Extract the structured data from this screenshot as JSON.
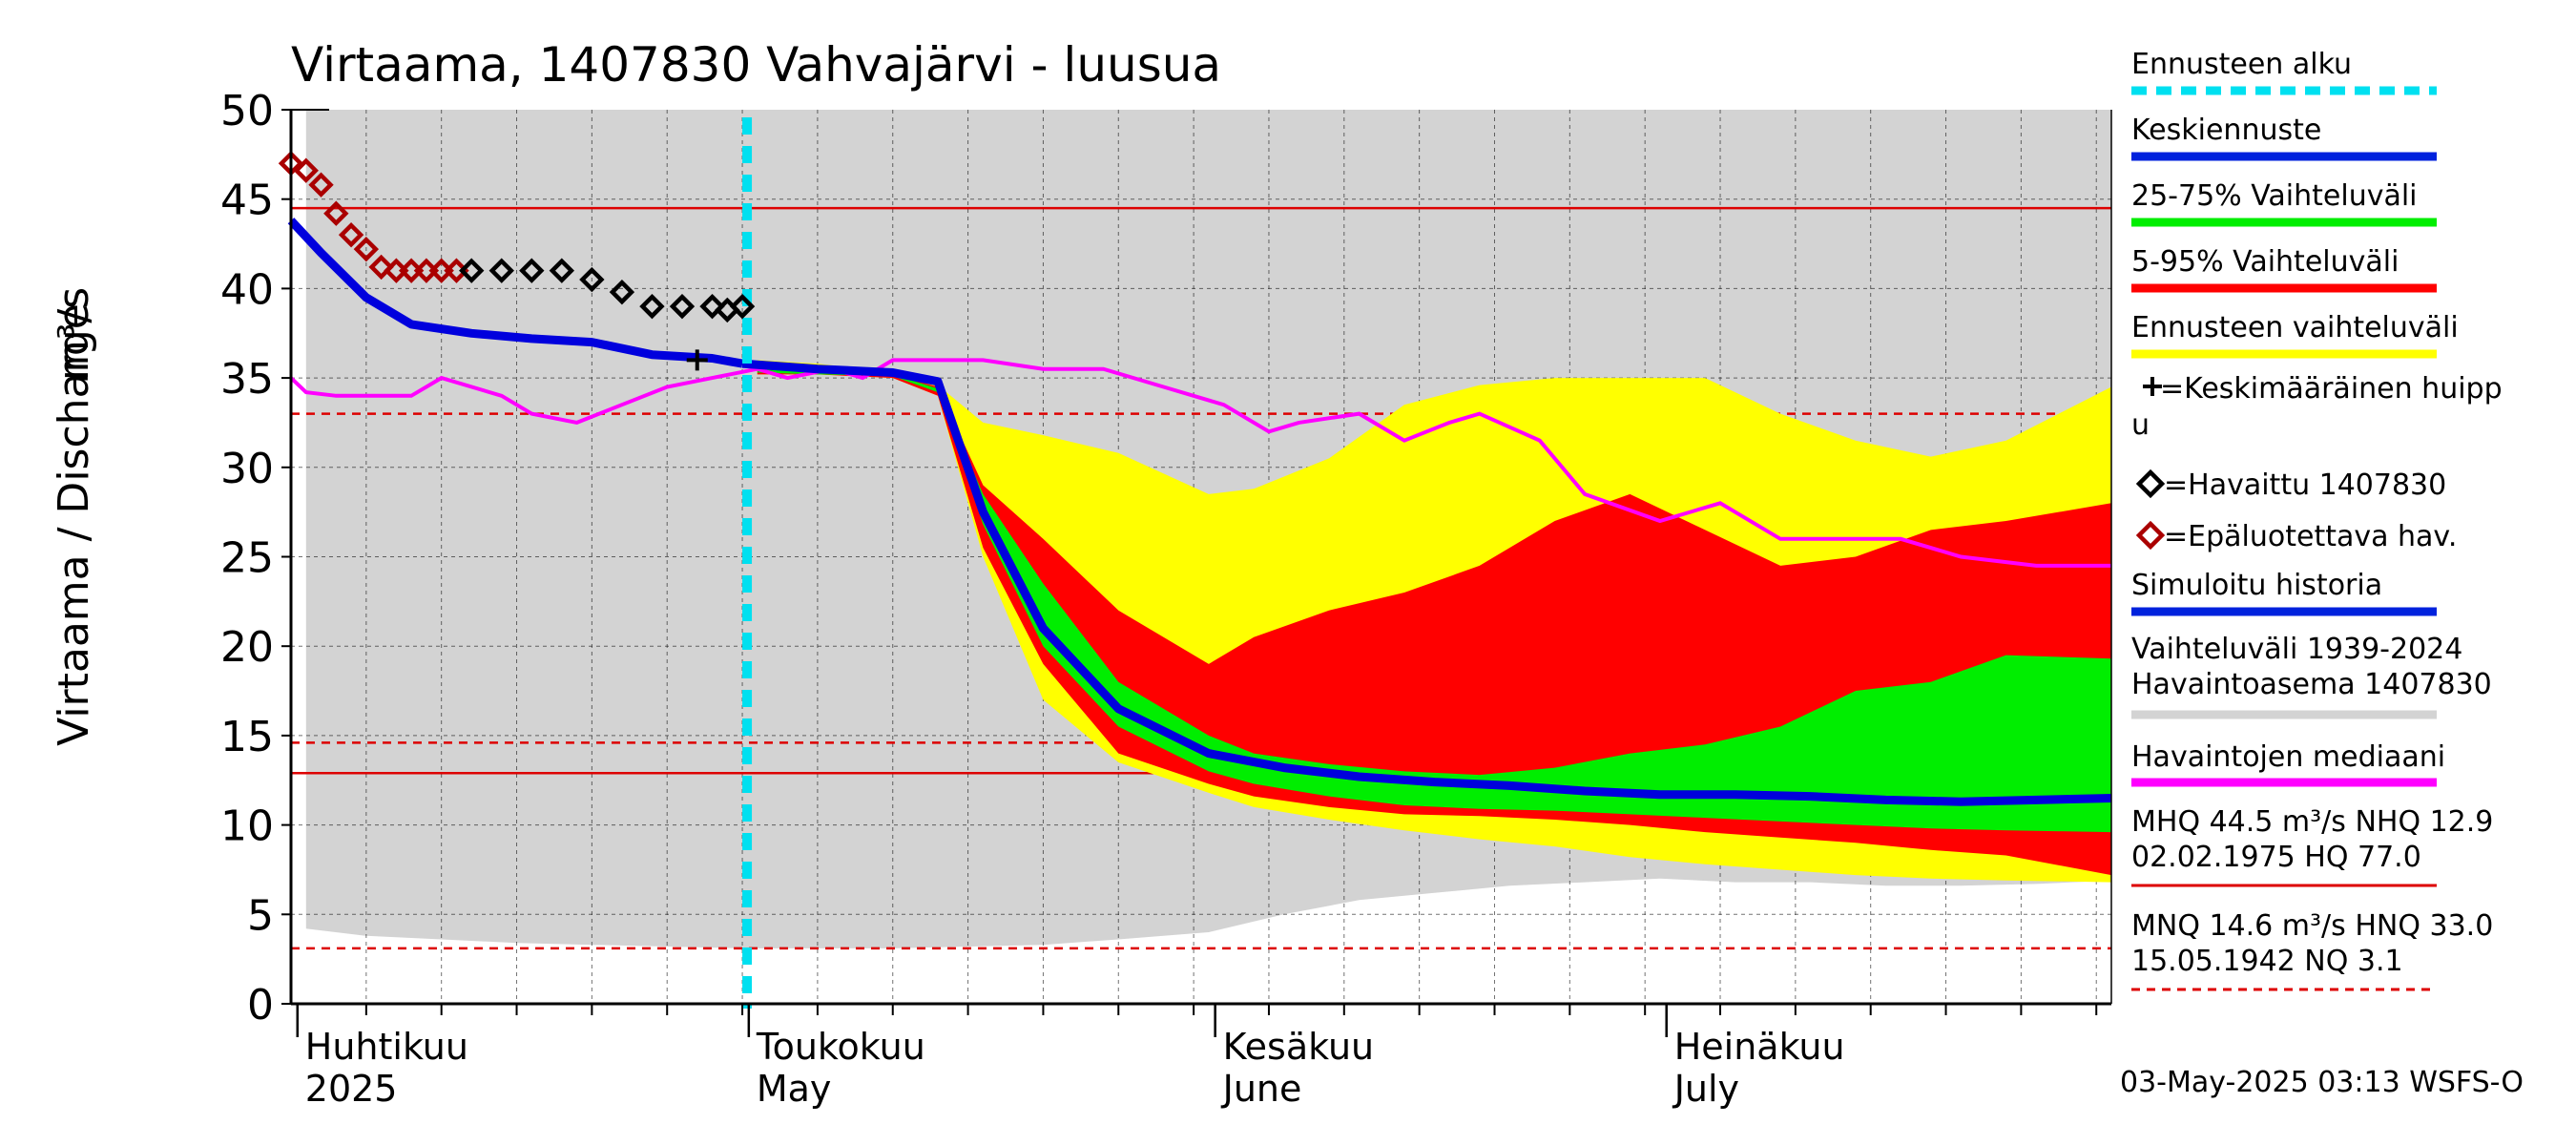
{
  "chart_data": {
    "type": "area",
    "title": "Virtaama, 1407830 Vahvajärvi - luusua",
    "ylabel": "Virtaama / Discharge",
    "yunit": "m³/s",
    "ylim": [
      0,
      50
    ],
    "yticks": [
      0,
      5,
      10,
      15,
      20,
      25,
      30,
      35,
      40,
      45,
      50
    ],
    "xlim": [
      "2025-03-31",
      "2025-07-30"
    ],
    "month_labels": [
      {
        "date": "2025-04-01",
        "fi": "Huhtikuu",
        "en": "2025"
      },
      {
        "date": "2025-05-01",
        "fi": "Toukokuu",
        "en": "May"
      },
      {
        "date": "2025-06-01",
        "fi": "Kesäkuu",
        "en": "June"
      },
      {
        "date": "2025-07-01",
        "fi": "Heinäkuu",
        "en": "July"
      }
    ],
    "forecast_start": "2025-04-30",
    "reference_lines": [
      {
        "name": "MHQ",
        "value": 44.5,
        "style": "solid",
        "color": "#dd0000"
      },
      {
        "name": "HNQ",
        "value": 33.0,
        "style": "dashed",
        "color": "#dd0000"
      },
      {
        "name": "MNQ",
        "value": 14.6,
        "style": "dashed",
        "color": "#dd0000"
      },
      {
        "name": "NHQ",
        "value": 12.9,
        "style": "solid",
        "color": "#dd0000"
      },
      {
        "name": "NQ",
        "value": 3.1,
        "style": "dashed",
        "color": "#dd0000"
      }
    ],
    "history_range_1939_2024": {
      "color": "#d3d3d3",
      "x": [
        "2025-04-01",
        "2025-04-05",
        "2025-04-10",
        "2025-04-15",
        "2025-04-20",
        "2025-04-25",
        "2025-04-30",
        "2025-05-05",
        "2025-05-10",
        "2025-05-15",
        "2025-05-20",
        "2025-05-25",
        "2025-05-31",
        "2025-06-05",
        "2025-06-10",
        "2025-06-15",
        "2025-06-20",
        "2025-06-25",
        "2025-06-30",
        "2025-07-05",
        "2025-07-10",
        "2025-07-15",
        "2025-07-20",
        "2025-07-25",
        "2025-07-30"
      ],
      "low": [
        4.2,
        3.8,
        3.6,
        3.4,
        3.3,
        3.2,
        3.1,
        3.1,
        3.1,
        3.2,
        3.3,
        3.6,
        4.0,
        5.0,
        5.8,
        6.2,
        6.6,
        6.8,
        7.0,
        6.8,
        6.8,
        6.6,
        6.6,
        6.7,
        6.9
      ],
      "high": [
        50,
        50,
        50,
        50,
        50,
        50,
        50,
        50,
        50,
        50,
        50,
        50,
        50,
        50,
        50,
        50,
        50,
        50,
        50,
        50,
        50,
        50,
        50,
        50,
        50
      ]
    },
    "forecast_range": {
      "color": "#ffff00",
      "x": [
        "2025-05-01",
        "2025-05-05",
        "2025-05-10",
        "2025-05-13",
        "2025-05-16",
        "2025-05-20",
        "2025-05-25",
        "2025-05-31",
        "2025-06-03",
        "2025-06-08",
        "2025-06-13",
        "2025-06-18",
        "2025-06-23",
        "2025-06-28",
        "2025-07-03",
        "2025-07-08",
        "2025-07-13",
        "2025-07-18",
        "2025-07-23",
        "2025-07-30"
      ],
      "low": [
        35.2,
        35.2,
        35.0,
        34.0,
        25.0,
        17.0,
        13.5,
        11.8,
        11.0,
        10.3,
        9.7,
        9.2,
        8.8,
        8.2,
        7.8,
        7.5,
        7.2,
        7.0,
        6.9,
        6.8
      ],
      "high": [
        36.0,
        35.8,
        35.3,
        34.6,
        32.5,
        31.8,
        30.8,
        28.5,
        28.8,
        30.5,
        33.5,
        34.6,
        35.0,
        35.0,
        35.0,
        33.0,
        31.5,
        30.6,
        31.5,
        34.5
      ]
    },
    "range_5_95": {
      "color": "#ff0000",
      "x": [
        "2025-05-01",
        "2025-05-05",
        "2025-05-10",
        "2025-05-13",
        "2025-05-16",
        "2025-05-20",
        "2025-05-25",
        "2025-05-31",
        "2025-06-03",
        "2025-06-08",
        "2025-06-13",
        "2025-06-18",
        "2025-06-23",
        "2025-06-28",
        "2025-07-03",
        "2025-07-08",
        "2025-07-13",
        "2025-07-18",
        "2025-07-23",
        "2025-07-30"
      ],
      "low": [
        35.2,
        35.2,
        35.0,
        34.0,
        25.5,
        19.0,
        14.0,
        12.3,
        11.6,
        11.0,
        10.6,
        10.5,
        10.3,
        10.0,
        9.6,
        9.3,
        9.0,
        8.6,
        8.3,
        7.2
      ],
      "high": [
        35.6,
        35.4,
        35.2,
        34.5,
        29.0,
        26.0,
        22.0,
        19.0,
        20.5,
        22.0,
        23.0,
        24.5,
        27.0,
        28.5,
        26.5,
        24.5,
        25.0,
        26.5,
        27.0,
        28.0
      ]
    },
    "range_25_75": {
      "color": "#00ee00",
      "x": [
        "2025-05-01",
        "2025-05-05",
        "2025-05-10",
        "2025-05-13",
        "2025-05-16",
        "2025-05-20",
        "2025-05-25",
        "2025-05-31",
        "2025-06-03",
        "2025-06-08",
        "2025-06-13",
        "2025-06-18",
        "2025-06-23",
        "2025-06-28",
        "2025-07-03",
        "2025-07-08",
        "2025-07-13",
        "2025-07-18",
        "2025-07-23",
        "2025-07-30"
      ],
      "low": [
        35.3,
        35.2,
        35.1,
        34.2,
        26.8,
        20.0,
        15.5,
        13.0,
        12.3,
        11.6,
        11.1,
        10.9,
        10.8,
        10.6,
        10.4,
        10.2,
        10.0,
        9.8,
        9.7,
        9.6
      ],
      "high": [
        35.5,
        35.3,
        35.2,
        34.4,
        28.5,
        23.5,
        18.0,
        15.0,
        14.0,
        13.4,
        13.0,
        12.8,
        13.2,
        14.0,
        14.5,
        15.5,
        17.5,
        18.0,
        19.5,
        19.3
      ]
    },
    "median_history": {
      "color": "#ff00ff",
      "x": [
        "2025-03-31",
        "2025-04-01",
        "2025-04-03",
        "2025-04-08",
        "2025-04-10",
        "2025-04-14",
        "2025-04-16",
        "2025-04-19",
        "2025-04-22",
        "2025-04-25",
        "2025-04-28",
        "2025-05-01",
        "2025-05-03",
        "2025-05-06",
        "2025-05-08",
        "2025-05-10",
        "2025-05-16",
        "2025-05-20",
        "2025-05-24",
        "2025-05-28",
        "2025-06-01",
        "2025-06-04",
        "2025-06-06",
        "2025-06-10",
        "2025-06-13",
        "2025-06-16",
        "2025-06-18",
        "2025-06-22",
        "2025-06-25",
        "2025-06-30",
        "2025-07-04",
        "2025-07-08",
        "2025-07-12",
        "2025-07-16",
        "2025-07-20",
        "2025-07-25",
        "2025-07-30"
      ],
      "y": [
        35.0,
        34.2,
        34.0,
        34.0,
        35.0,
        34.0,
        33.0,
        32.5,
        33.5,
        34.5,
        35.0,
        35.5,
        35.0,
        35.5,
        35.0,
        36.0,
        36.0,
        35.5,
        35.5,
        34.5,
        33.5,
        32.0,
        32.5,
        33.0,
        31.5,
        32.5,
        33.0,
        31.5,
        28.5,
        27.0,
        28.0,
        26.0,
        26.0,
        26.0,
        25.0,
        24.5,
        24.5
      ]
    },
    "simulated_history": {
      "color": "#0000dd",
      "x": [
        "2025-03-31",
        "2025-04-02",
        "2025-04-05",
        "2025-04-08",
        "2025-04-12",
        "2025-04-16",
        "2025-04-20",
        "2025-04-24",
        "2025-04-28",
        "2025-04-30"
      ],
      "y": [
        43.8,
        42.0,
        39.5,
        38.0,
        37.5,
        37.2,
        37.0,
        36.3,
        36.1,
        35.8
      ]
    },
    "mean_forecast": {
      "color": "#0000dd",
      "x": [
        "2025-04-30",
        "2025-05-05",
        "2025-05-10",
        "2025-05-13",
        "2025-05-16",
        "2025-05-20",
        "2025-05-25",
        "2025-05-31",
        "2025-06-05",
        "2025-06-10",
        "2025-06-15",
        "2025-06-20",
        "2025-06-25",
        "2025-06-30",
        "2025-07-05",
        "2025-07-10",
        "2025-07-15",
        "2025-07-20",
        "2025-07-25",
        "2025-07-30"
      ],
      "y": [
        35.8,
        35.5,
        35.3,
        34.8,
        27.5,
        21.0,
        16.5,
        14.0,
        13.2,
        12.7,
        12.4,
        12.2,
        11.9,
        11.7,
        11.7,
        11.6,
        11.4,
        11.3,
        11.4,
        11.5
      ]
    },
    "observed": {
      "color": "#000000",
      "x": [
        "2025-04-12",
        "2025-04-14",
        "2025-04-16",
        "2025-04-18",
        "2025-04-20",
        "2025-04-22",
        "2025-04-24",
        "2025-04-26",
        "2025-04-28",
        "2025-04-29",
        "2025-04-30"
      ],
      "y": [
        41.0,
        41.0,
        41.0,
        41.0,
        40.5,
        39.8,
        39.0,
        39.0,
        39.0,
        38.8,
        39.0
      ]
    },
    "unreliable_observed": {
      "color": "#aa0000",
      "x": [
        "2025-03-31",
        "2025-04-01",
        "2025-04-02",
        "2025-04-03",
        "2025-04-04",
        "2025-04-05",
        "2025-04-06",
        "2025-04-07",
        "2025-04-08",
        "2025-04-09",
        "2025-04-10",
        "2025-04-11"
      ],
      "y": [
        47.0,
        46.6,
        45.8,
        44.2,
        43.0,
        42.2,
        41.2,
        41.0,
        41.0,
        41.0,
        41.0,
        41.0
      ]
    },
    "mean_peak": {
      "date": "2025-04-27",
      "value": 36.0
    },
    "legend_position": "right"
  },
  "legend": [
    {
      "label": "Ennusteen alku",
      "color": "#00e0f0",
      "style": "dashed"
    },
    {
      "label": "Keskiennuste",
      "color": "#0022dd",
      "style": "solid"
    },
    {
      "label": "25-75% Vaihteluväli",
      "color": "#00ee00",
      "style": "solid"
    },
    {
      "label": "5-95% Vaihteluväli",
      "color": "#ff0000",
      "style": "solid"
    },
    {
      "label": "Ennusteen vaihteluväli",
      "color": "#ffff00",
      "style": "solid"
    },
    {
      "label": "Simuloitu historia",
      "color": "#0022dd",
      "style": "solid"
    },
    {
      "label": "Havaintojen mediaani",
      "color": "#ff00ff",
      "style": "solid"
    }
  ],
  "legend_extra": {
    "mean_peak_line1": "=Keskimääräinen huipp",
    "mean_peak_line2": "u",
    "observed": "=Havaittu 1407830",
    "unreliable": "=Epäluotettava hav.",
    "history_line1": "Vaihteluväli 1939-2024",
    "history_line2": " Havaintoasema 1407830",
    "history_color": "#d3d3d3",
    "stats1_line1": "MHQ 44.5 m³/s NHQ 12.9",
    "stats1_line2": "02.02.1975 HQ 77.0",
    "stats2_line1": "MNQ 14.6 m³/s HNQ 33.0",
    "stats2_line2": "15.05.1942 NQ  3.1"
  },
  "footer": "03-May-2025 03:13 WSFS-O"
}
